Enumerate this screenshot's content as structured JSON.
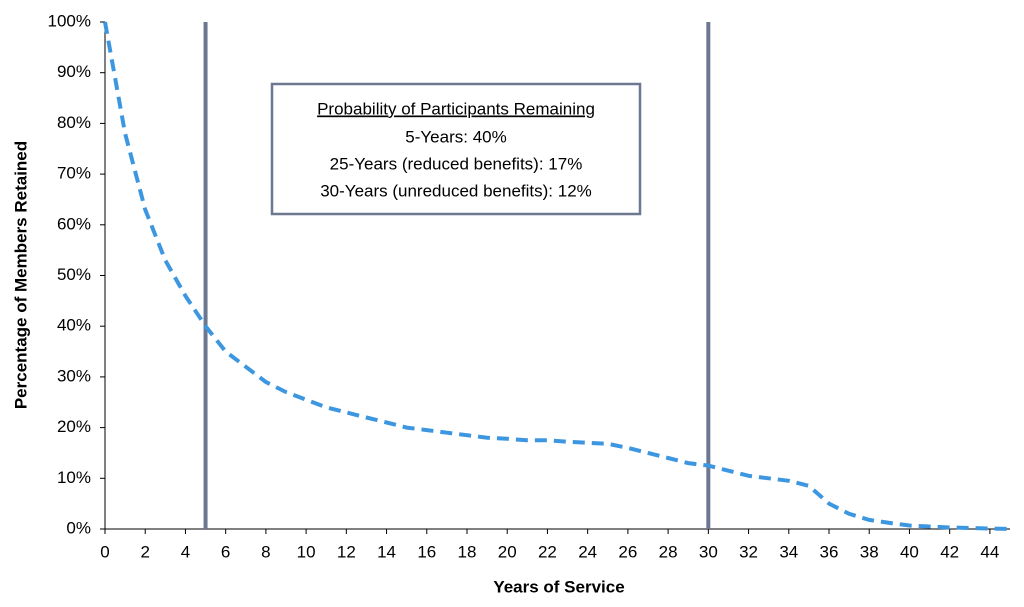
{
  "chart_data": {
    "type": "line",
    "x_label": "Years of Service",
    "y_label": "Percentage of Members Retained",
    "x": [
      0,
      1,
      2,
      3,
      4,
      5,
      6,
      7,
      8,
      9,
      10,
      11,
      12,
      13,
      14,
      15,
      16,
      17,
      18,
      19,
      20,
      21,
      22,
      23,
      24,
      25,
      26,
      27,
      28,
      29,
      30,
      31,
      32,
      33,
      34,
      35,
      36,
      37,
      38,
      39,
      40,
      41,
      42,
      43,
      44,
      45
    ],
    "values": [
      100,
      78,
      63,
      53,
      46,
      40,
      35,
      32,
      29,
      27,
      25.5,
      24,
      23,
      22,
      21,
      20,
      19.5,
      19,
      18.5,
      18,
      17.8,
      17.5,
      17.5,
      17.2,
      17,
      16.8,
      16,
      15,
      14,
      13,
      12.5,
      11.5,
      10.5,
      10,
      9.5,
      8.5,
      5,
      3,
      1.8,
      1.2,
      0.7,
      0.5,
      0.3,
      0.2,
      0.1,
      0
    ],
    "color": "#3d97e0",
    "dashed": true,
    "xlim": [
      0,
      45
    ],
    "xticks": [
      0,
      2,
      4,
      6,
      8,
      10,
      12,
      14,
      16,
      18,
      20,
      22,
      24,
      26,
      28,
      30,
      32,
      34,
      36,
      38,
      40,
      42,
      44
    ],
    "ylim": [
      0,
      100
    ],
    "yticks": [
      {
        "value": 0,
        "label": "0%"
      },
      {
        "value": 10,
        "label": "10%"
      },
      {
        "value": 20,
        "label": "20%"
      },
      {
        "value": 30,
        "label": "30%"
      },
      {
        "value": 40,
        "label": "40%"
      },
      {
        "value": 50,
        "label": "50%"
      },
      {
        "value": 60,
        "label": "60%"
      },
      {
        "value": 70,
        "label": "70%"
      },
      {
        "value": 80,
        "label": "80%"
      },
      {
        "value": 90,
        "label": "90%"
      },
      {
        "value": 100,
        "label": "100%"
      }
    ],
    "vlines": {
      "values": [
        5,
        30
      ],
      "color": "#6b7890"
    },
    "annotation": {
      "title": "Probability of Participants Remaining",
      "lines": [
        "5-Years: 40%",
        "25-Years (reduced benefits): 17%",
        "30-Years (unreduced benefits): 12%"
      ]
    }
  }
}
